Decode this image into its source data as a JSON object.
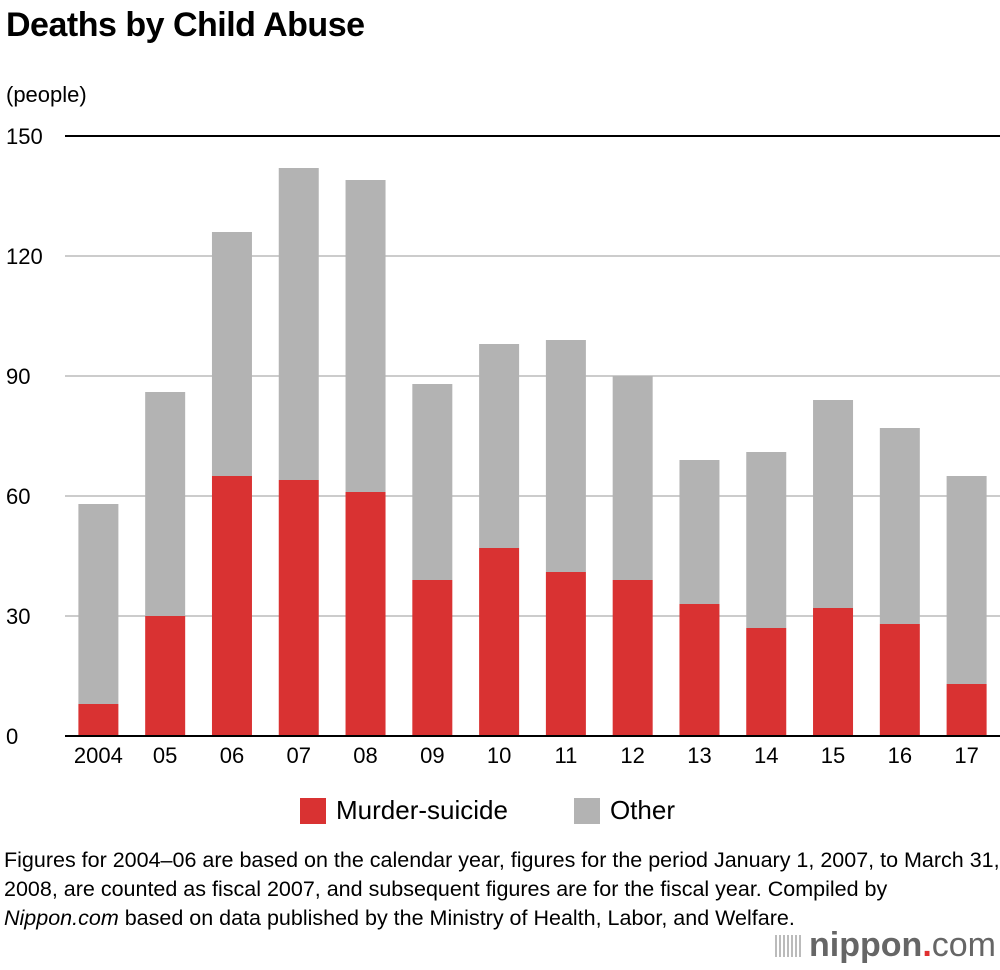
{
  "chart_data": {
    "type": "bar",
    "stacked": true,
    "title": "Deaths by Child Abuse",
    "ylabel": "(people)",
    "xlabel": "",
    "ylim": [
      0,
      150
    ],
    "yticks": [
      0,
      30,
      60,
      90,
      120,
      150
    ],
    "grid": true,
    "legend_placement": "bottom",
    "categories": [
      "2004",
      "05",
      "06",
      "07",
      "08",
      "09",
      "10",
      "11",
      "12",
      "13",
      "14",
      "15",
      "16",
      "17"
    ],
    "series": [
      {
        "name": "Murder-suicide",
        "color": "#d93232",
        "values": [
          8,
          30,
          65,
          64,
          61,
          39,
          47,
          41,
          39,
          33,
          27,
          32,
          28,
          13
        ]
      },
      {
        "name": "Other",
        "color": "#b3b3b3",
        "values": [
          50,
          56,
          61,
          78,
          78,
          49,
          51,
          58,
          51,
          36,
          44,
          52,
          49,
          52
        ]
      }
    ]
  },
  "note": {
    "text_before": "Figures for 2004–06 are based on the calendar year, figures for the period January 1, 2007, to March 31, 2008, are counted as fiscal 2007, and subsequent figures are for the fiscal year. Compiled by ",
    "italic": "Nippon.com",
    "text_after": " based on data published by the Ministry of Health, Labor, and Welfare."
  },
  "logo": {
    "name": "nippon",
    "dot": ".",
    "suffix": "com"
  }
}
